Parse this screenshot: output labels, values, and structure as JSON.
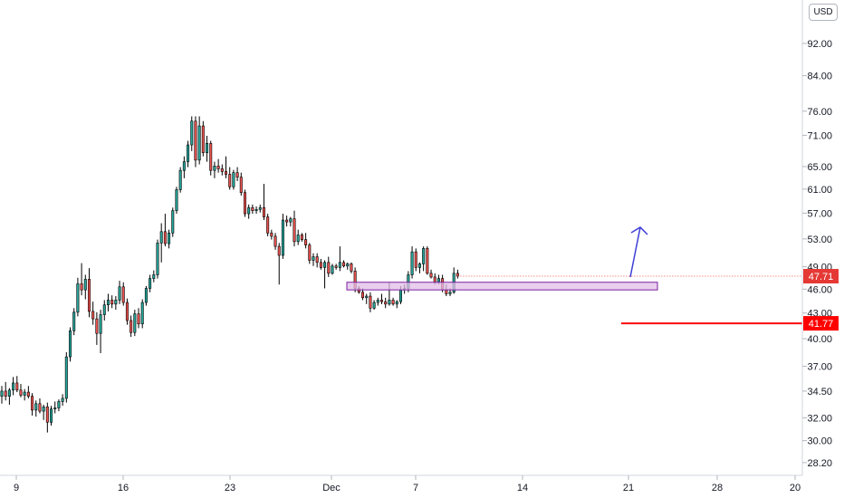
{
  "currency": "USD",
  "chart_data": {
    "type": "candlestick",
    "y_scale": "log",
    "ylim": [
      27.2,
      104
    ],
    "y_ticks": [
      "92.00",
      "84.00",
      "76.00",
      "71.00",
      "65.00",
      "61.00",
      "57.00",
      "53.00",
      "49.00",
      "46.00",
      "43.00",
      "40.00",
      "37.00",
      "34.50",
      "32.00",
      "30.00",
      "28.20"
    ],
    "x_ticks": [
      "9",
      "16",
      "23",
      "Dec",
      "7",
      "14",
      "21",
      "28",
      "20"
    ],
    "last_price": "47.71",
    "target_price": "41.77",
    "support_zone": [
      45.9,
      46.9
    ],
    "colors": {
      "up": "#26a69a",
      "down": "#ef5350",
      "target": "#ff0000",
      "zone_fill": "#e1bee7",
      "zone_border": "#7b1fa2",
      "arrow": "#3f3fd6"
    },
    "candles": [
      [
        34,
        35,
        33.3,
        34.5
      ],
      [
        34.5,
        35.4,
        33.6,
        34
      ],
      [
        34,
        34.8,
        33.2,
        34.6
      ],
      [
        34.6,
        35.9,
        34.1,
        35.3
      ],
      [
        35.3,
        36,
        34.4,
        34.6
      ],
      [
        34.6,
        35.2,
        33.9,
        34.1
      ],
      [
        34.1,
        34.7,
        33.6,
        34.4
      ],
      [
        34.4,
        35,
        33.8,
        34
      ],
      [
        34,
        34.3,
        32.2,
        32.7
      ],
      [
        32.7,
        33.6,
        32.1,
        33.3
      ],
      [
        33.3,
        33.8,
        32.4,
        32.6
      ],
      [
        32.6,
        33.2,
        31.8,
        33
      ],
      [
        33,
        33.4,
        30.7,
        31.6
      ],
      [
        31.6,
        33.1,
        31.3,
        32.8
      ],
      [
        32.8,
        33.5,
        32.4,
        32.9
      ],
      [
        32.9,
        33.7,
        32.6,
        33.5
      ],
      [
        33.5,
        34.2,
        33.1,
        33.8
      ],
      [
        33.8,
        38.5,
        33.4,
        38
      ],
      [
        38,
        41.3,
        37.5,
        40.9
      ],
      [
        40.9,
        43.6,
        40.4,
        43.1
      ],
      [
        43.1,
        47.5,
        42.6,
        46.7
      ],
      [
        46.7,
        49.5,
        45.2,
        45.9
      ],
      [
        45.9,
        47.9,
        44.7,
        47.3
      ],
      [
        47.3,
        48.8,
        42.5,
        43.2
      ],
      [
        43.2,
        44.4,
        41.6,
        42.3
      ],
      [
        42.3,
        43.1,
        39.3,
        40.6
      ],
      [
        40.6,
        43.4,
        38.4,
        42.8
      ],
      [
        42.8,
        44.6,
        42.1,
        44
      ],
      [
        44,
        45.4,
        43.2,
        44.6
      ],
      [
        44.6,
        45.2,
        43.6,
        44.1
      ],
      [
        44.1,
        45.1,
        43.4,
        44.6
      ],
      [
        44.6,
        47.1,
        44.1,
        46.3
      ],
      [
        46.3,
        46.9,
        43.9,
        44.3
      ],
      [
        44.3,
        44.8,
        41.6,
        42.1
      ],
      [
        42.1,
        42.7,
        40.2,
        40.7
      ],
      [
        40.7,
        43.4,
        40.3,
        42.9
      ],
      [
        42.9,
        43.6,
        41.2,
        41.7
      ],
      [
        41.7,
        44.7,
        41.2,
        44.3
      ],
      [
        44.3,
        46.4,
        43.9,
        46.1
      ],
      [
        46.1,
        47.9,
        45.6,
        47.4
      ],
      [
        47.4,
        48.5,
        46.9,
        47.9
      ],
      [
        47.9,
        52.9,
        47.4,
        52.4
      ],
      [
        52.4,
        55.4,
        49.6,
        54.1
      ],
      [
        54.1,
        56.9,
        51.9,
        52.3
      ],
      [
        52.3,
        54.4,
        51.6,
        53.9
      ],
      [
        53.9,
        57.9,
        53.3,
        57.4
      ],
      [
        57.4,
        61.4,
        56.9,
        60.9
      ],
      [
        60.9,
        64.9,
        60.4,
        64.3
      ],
      [
        64.3,
        66.9,
        62.9,
        65.9
      ],
      [
        65.9,
        69.9,
        64.9,
        69.1
      ],
      [
        69.1,
        74.9,
        67.9,
        73.9
      ],
      [
        73.9,
        74.9,
        64.9,
        66.2
      ],
      [
        66.2,
        74.9,
        65.4,
        72.9
      ],
      [
        72.9,
        73.9,
        66.9,
        67.6
      ],
      [
        67.6,
        70.9,
        65.9,
        69.4
      ],
      [
        69.4,
        69.9,
        63.4,
        64.3
      ],
      [
        64.3,
        65.9,
        62.9,
        65.1
      ],
      [
        65.1,
        66.4,
        63.9,
        64.6
      ],
      [
        64.6,
        65.4,
        63.4,
        64.1
      ],
      [
        64.1,
        66.9,
        62.9,
        63.6
      ],
      [
        63.6,
        64.9,
        60.9,
        61.4
      ],
      [
        61.4,
        64.4,
        60.9,
        63.9
      ],
      [
        63.9,
        64.9,
        62.4,
        63.1
      ],
      [
        63.1,
        63.9,
        59.9,
        60.4
      ],
      [
        60.4,
        60.9,
        56.4,
        56.9
      ],
      [
        56.9,
        58.4,
        56.1,
        57.9
      ],
      [
        57.9,
        58.4,
        56.9,
        57.4
      ],
      [
        57.4,
        58.1,
        56.9,
        57.6
      ],
      [
        57.6,
        58.4,
        57.1,
        57.9
      ],
      [
        57.9,
        61.9,
        55.9,
        56.4
      ],
      [
        56.4,
        56.9,
        53.4,
        53.9
      ],
      [
        53.9,
        54.4,
        52.9,
        53.4
      ],
      [
        53.4,
        53.9,
        51.4,
        51.9
      ],
      [
        51.9,
        52.4,
        46.6,
        50.6
      ],
      [
        50.6,
        56.9,
        50.1,
        55.9
      ],
      [
        55.9,
        56.6,
        54.9,
        55.6
      ],
      [
        55.6,
        56.4,
        54.9,
        56.1
      ],
      [
        56.1,
        57.4,
        51.9,
        52.6
      ],
      [
        52.6,
        54.4,
        52.1,
        53.6
      ],
      [
        53.6,
        53.9,
        52.6,
        52.9
      ],
      [
        52.9,
        53.9,
        51.6,
        52.1
      ],
      [
        52.1,
        52.4,
        49.4,
        49.9
      ],
      [
        49.9,
        50.9,
        49.1,
        50.4
      ],
      [
        50.4,
        50.9,
        48.9,
        49.6
      ],
      [
        49.6,
        50.1,
        48.6,
        48.9
      ],
      [
        48.9,
        49.9,
        46.1,
        49.6
      ],
      [
        49.6,
        50.4,
        47.6,
        48.1
      ],
      [
        48.1,
        49.4,
        47.9,
        49.1
      ],
      [
        49.1,
        49.4,
        48.6,
        48.9
      ],
      [
        48.9,
        51.9,
        48.4,
        49.6
      ],
      [
        49.6,
        49.9,
        48.9,
        49.1
      ],
      [
        49.1,
        49.6,
        48.6,
        49.4
      ],
      [
        49.4,
        49.6,
        48.1,
        48.4
      ],
      [
        48.4,
        48.9,
        45.6,
        46.1
      ],
      [
        46.1,
        46.4,
        45.4,
        45.6
      ],
      [
        45.6,
        46.1,
        44.6,
        44.9
      ],
      [
        44.9,
        45.4,
        44.1,
        45.1
      ],
      [
        45.1,
        45.6,
        43.1,
        43.6
      ],
      [
        43.6,
        44.6,
        43.4,
        44.3
      ],
      [
        44.3,
        44.9,
        43.9,
        44.6
      ],
      [
        44.6,
        45.4,
        44.1,
        44.4
      ],
      [
        44.4,
        44.9,
        43.6,
        44.1
      ],
      [
        44.1,
        46.9,
        43.9,
        44.6
      ],
      [
        44.6,
        44.9,
        43.9,
        44.1
      ],
      [
        44.1,
        44.6,
        43.6,
        44.4
      ],
      [
        44.4,
        46.4,
        44.1,
        45.9
      ],
      [
        45.9,
        46.6,
        45.4,
        46.1
      ],
      [
        46.1,
        48.4,
        45.6,
        47.9
      ],
      [
        47.9,
        51.9,
        47.4,
        51.1
      ],
      [
        51.1,
        51.6,
        48.4,
        48.9
      ],
      [
        48.9,
        49.6,
        48.1,
        49.4
      ],
      [
        49.4,
        51.9,
        48.4,
        51.6
      ],
      [
        51.6,
        51.9,
        47.9,
        48.1
      ],
      [
        48.1,
        48.6,
        47.4,
        47.6
      ],
      [
        47.6,
        48.1,
        46.6,
        46.9
      ],
      [
        46.9,
        47.9,
        46.6,
        47.4
      ],
      [
        47.4,
        47.9,
        45.6,
        45.9
      ],
      [
        45.9,
        46.6,
        45.1,
        45.4
      ],
      [
        45.4,
        46.1,
        45.1,
        45.6
      ],
      [
        45.6,
        48.9,
        45.4,
        48.1
      ],
      [
        48.1,
        48.6,
        47.4,
        47.71
      ]
    ]
  }
}
